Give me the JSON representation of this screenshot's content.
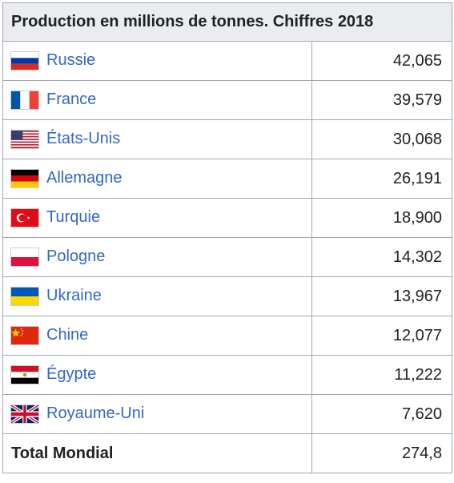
{
  "table": {
    "header": "Production en millions de tonnes. Chiffres 2018",
    "rows": [
      {
        "country": "Russie",
        "value": "42,065",
        "flag": "russia-flag-icon"
      },
      {
        "country": "France",
        "value": "39,579",
        "flag": "france-flag-icon"
      },
      {
        "country": "États-Unis",
        "value": "30,068",
        "flag": "usa-flag-icon"
      },
      {
        "country": "Allemagne",
        "value": "26,191",
        "flag": "germany-flag-icon"
      },
      {
        "country": "Turquie",
        "value": "18,900",
        "flag": "turkey-flag-icon"
      },
      {
        "country": "Pologne",
        "value": "14,302",
        "flag": "poland-flag-icon"
      },
      {
        "country": "Ukraine",
        "value": "13,967",
        "flag": "ukraine-flag-icon"
      },
      {
        "country": "Chine",
        "value": "12,077",
        "flag": "china-flag-icon"
      },
      {
        "country": "Égypte",
        "value": "11,222",
        "flag": "egypt-flag-icon"
      },
      {
        "country": "Royaume-Uni",
        "value": "7,620",
        "flag": "uk-flag-icon"
      }
    ],
    "total": {
      "label": "Total Mondial",
      "value": "274,8"
    }
  },
  "colors": {
    "link": "#3366cc",
    "header_bg": "#eaecf0",
    "border": "#a2a9b1"
  }
}
